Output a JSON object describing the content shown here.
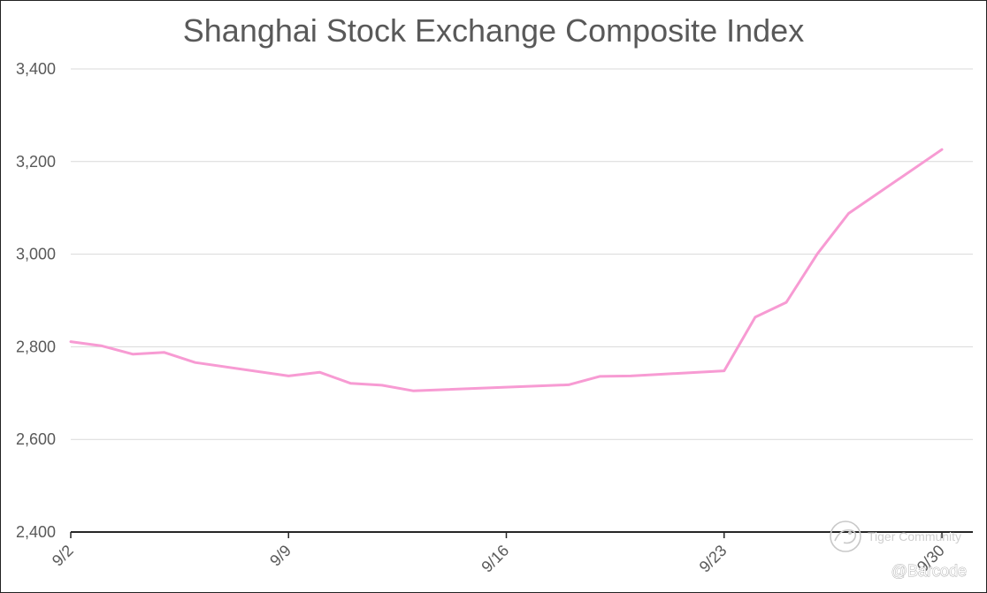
{
  "chart_data": {
    "type": "line",
    "title": "Shanghai Stock Exchange Composite Index",
    "xlabel": "",
    "ylabel": "",
    "ylim": [
      2400,
      3400
    ],
    "yticks": [
      2400,
      2600,
      2800,
      3000,
      3200,
      3400
    ],
    "ytick_labels": [
      "2,400",
      "2,600",
      "2,800",
      "3,000",
      "3,200",
      "3,400"
    ],
    "xlim": [
      1,
      30
    ],
    "xticks": [
      2,
      9,
      16,
      23,
      30
    ],
    "xtick_labels": [
      "9/2",
      "9/9",
      "9/16",
      "9/23",
      "9/30"
    ],
    "grid": true,
    "legend": "none",
    "color": "#f79bd3",
    "series": [
      {
        "x": [
          2,
          3,
          4,
          5,
          6,
          9,
          10,
          11,
          12,
          13,
          18,
          19,
          20,
          23,
          24,
          25,
          26,
          27,
          30
        ],
        "values": [
          2811,
          2802,
          2784,
          2788,
          2766,
          2737,
          2745,
          2721,
          2717,
          2705,
          2718,
          2736,
          2737,
          2748,
          2864,
          2896,
          3001,
          3088,
          3226
        ]
      }
    ]
  },
  "watermark": {
    "brand": "Tiger Community",
    "handle": "@Barcode",
    "logo_icon": "tiger-logo-icon"
  }
}
